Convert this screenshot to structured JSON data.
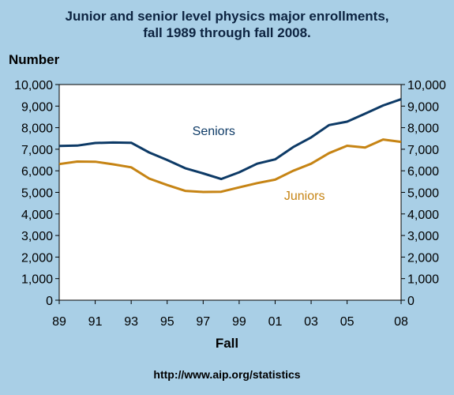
{
  "title_line1": "Junior and senior level physics major enrollments,",
  "title_line2": "fall 1989 through fall 2008.",
  "source": "http://www.aip.org/statistics",
  "chart_data": {
    "type": "line",
    "ylabel": "Number",
    "xlabel": "Fall",
    "ylim": [
      0,
      10000
    ],
    "xlim": [
      1989,
      2008
    ],
    "grid": false,
    "y_ticks": [
      0,
      1000,
      2000,
      3000,
      4000,
      5000,
      6000,
      7000,
      8000,
      9000,
      10000
    ],
    "y_tick_labels": [
      "0",
      "1,000",
      "2,000",
      "3,000",
      "4,000",
      "5,000",
      "6,000",
      "7,000",
      "8,000",
      "9,000",
      "10,000"
    ],
    "x_ticks": [
      1989,
      1991,
      1993,
      1995,
      1997,
      1999,
      2001,
      2003,
      2005,
      2008
    ],
    "x_tick_labels": [
      "89",
      "91",
      "93",
      "95",
      "97",
      "99",
      "01",
      "03",
      "05",
      "08"
    ],
    "x": [
      1989,
      1990,
      1991,
      1992,
      1993,
      1994,
      1995,
      1996,
      1997,
      1998,
      1999,
      2000,
      2001,
      2002,
      2003,
      2004,
      2005,
      2006,
      2007,
      2008
    ],
    "series": [
      {
        "name": "Seniors",
        "color": "#0d3a66",
        "values": [
          7150,
          7170,
          7290,
          7310,
          7300,
          6850,
          6500,
          6120,
          5880,
          5620,
          5930,
          6330,
          6530,
          7100,
          7550,
          8120,
          8280,
          8650,
          9030,
          9320
        ]
      },
      {
        "name": "Juniors",
        "color": "#c68414",
        "values": [
          6310,
          6430,
          6420,
          6300,
          6160,
          5640,
          5340,
          5070,
          5020,
          5030,
          5230,
          5430,
          5590,
          6000,
          6330,
          6820,
          7160,
          7080,
          7450,
          7340
        ]
      }
    ]
  }
}
